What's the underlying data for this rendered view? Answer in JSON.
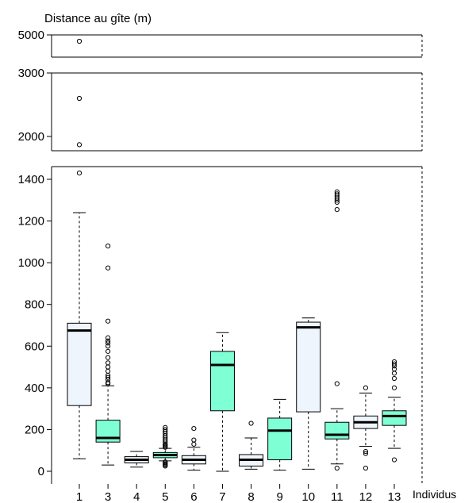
{
  "chart_data": {
    "type": "boxplot",
    "ylabel": "Distance au gîte (m)",
    "xlabel": "Individus",
    "y_axis": "broken",
    "grid": false,
    "legend": "none",
    "panels": [
      {
        "range": [
          0,
          1450
        ],
        "ticks": [
          0,
          200,
          400,
          600,
          800,
          1000,
          1200,
          1400
        ]
      },
      {
        "range": [
          1800,
          2800
        ],
        "ticks": [
          2000
        ]
      },
      {
        "range": [
          2800,
          3100
        ],
        "ticks": [
          3000
        ]
      },
      {
        "range": [
          4000,
          5100
        ],
        "ticks": [
          5000
        ]
      }
    ],
    "box_colors": {
      "light": "#eef5fc",
      "green": "#7fffd4"
    },
    "boxes": [
      {
        "label": "1",
        "color": "light",
        "min": 60,
        "q1": 315,
        "median": 675,
        "q3": 710,
        "max": 1240,
        "outliers": [
          1430,
          1870,
          2600,
          4800
        ]
      },
      {
        "label": "3",
        "color": "green",
        "min": 30,
        "q1": 140,
        "median": 160,
        "q3": 245,
        "max": 410,
        "outliers": [
          420,
          425,
          440,
          450,
          460,
          480,
          500,
          520,
          545,
          575,
          600,
          615,
          625,
          640,
          720,
          975,
          1080
        ]
      },
      {
        "label": "4",
        "color": "light",
        "min": 20,
        "q1": 40,
        "median": 55,
        "q3": 70,
        "max": 95,
        "outliers": []
      },
      {
        "label": "5",
        "color": "green",
        "min": 50,
        "q1": 65,
        "median": 78,
        "q3": 90,
        "max": 110,
        "outliers": [
          25,
          30,
          35,
          40,
          45,
          115,
          120,
          125,
          130,
          140,
          150,
          160,
          170,
          180,
          190,
          200,
          210
        ]
      },
      {
        "label": "6",
        "color": "light",
        "min": 5,
        "q1": 35,
        "median": 55,
        "q3": 75,
        "max": 115,
        "outliers": [
          130,
          150,
          205
        ]
      },
      {
        "label": "7",
        "color": "green",
        "min": 0,
        "q1": 290,
        "median": 510,
        "q3": 575,
        "max": 665,
        "outliers": []
      },
      {
        "label": "8",
        "color": "light",
        "min": 10,
        "q1": 25,
        "median": 55,
        "q3": 80,
        "max": 160,
        "outliers": [
          230
        ]
      },
      {
        "label": "9",
        "color": "green",
        "min": 5,
        "q1": 55,
        "median": 195,
        "q3": 255,
        "max": 345,
        "outliers": []
      },
      {
        "label": "10",
        "color": "light",
        "min": 10,
        "q1": 285,
        "median": 690,
        "q3": 715,
        "max": 735,
        "outliers": []
      },
      {
        "label": "11",
        "color": "green",
        "min": 35,
        "q1": 155,
        "median": 175,
        "q3": 235,
        "max": 300,
        "outliers": [
          15,
          420,
          1255,
          1290,
          1300,
          1310,
          1320,
          1330,
          1340
        ]
      },
      {
        "label": "12",
        "color": "light",
        "min": 120,
        "q1": 205,
        "median": 235,
        "q3": 265,
        "max": 375,
        "outliers": [
          15,
          85,
          95,
          400
        ]
      },
      {
        "label": "13",
        "color": "green",
        "min": 110,
        "q1": 220,
        "median": 265,
        "q3": 290,
        "max": 355,
        "outliers": [
          55,
          400,
          445,
          470,
          490,
          505,
          515,
          525
        ]
      }
    ]
  }
}
